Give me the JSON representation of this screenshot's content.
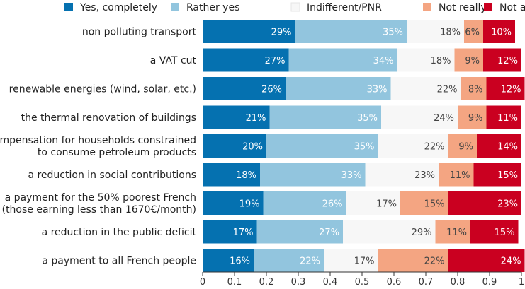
{
  "chart_data": {
    "type": "bar",
    "orientation": "horizontal",
    "stacked": true,
    "categories": [
      [
        "non polluting transport"
      ],
      [
        "a VAT cut"
      ],
      [
        "renewable energies (wind, solar, etc.)"
      ],
      [
        "the thermal renovation of buildings"
      ],
      [
        "compensation for households constrained",
        "to consume petroleum products"
      ],
      [
        "a reduction in social contributions"
      ],
      [
        "a payment for the 50% poorest French",
        "(those earning less than 1670€/month)"
      ],
      [
        "a reduction in the public deficit"
      ],
      [
        "a payment to all French people"
      ]
    ],
    "series": [
      {
        "name": "Yes, completely",
        "color": "#0571b0",
        "values": [
          0.29,
          0.27,
          0.26,
          0.21,
          0.2,
          0.18,
          0.19,
          0.17,
          0.16
        ],
        "labels": [
          "29%",
          "27%",
          "26%",
          "21%",
          "20%",
          "18%",
          "19%",
          "17%",
          "16%"
        ]
      },
      {
        "name": "Rather yes",
        "color": "#92c5de",
        "values": [
          0.35,
          0.34,
          0.33,
          0.35,
          0.35,
          0.33,
          0.26,
          0.27,
          0.22
        ],
        "labels": [
          "35%",
          "34%",
          "33%",
          "35%",
          "35%",
          "33%",
          "26%",
          "27%",
          "22%"
        ]
      },
      {
        "name": "Indifferent/PNR",
        "color": "#f7f7f7",
        "values": [
          0.18,
          0.18,
          0.22,
          0.24,
          0.22,
          0.23,
          0.17,
          0.29,
          0.17
        ],
        "labels": [
          "18%",
          "18%",
          "22%",
          "24%",
          "22%",
          "23%",
          "17%",
          "29%",
          "17%"
        ]
      },
      {
        "name": "Not really",
        "color": "#f4a582",
        "values": [
          0.06,
          0.09,
          0.08,
          0.09,
          0.09,
          0.11,
          0.15,
          0.11,
          0.22
        ],
        "labels": [
          "6%",
          "9%",
          "8%",
          "9%",
          "9%",
          "11%",
          "15%",
          "11%",
          "22%"
        ]
      },
      {
        "name": "Not at all",
        "color": "#ca0020",
        "values": [
          0.1,
          0.12,
          0.12,
          0.11,
          0.14,
          0.15,
          0.23,
          0.15,
          0.24
        ],
        "labels": [
          "10%",
          "12%",
          "12%",
          "11%",
          "14%",
          "15%",
          "23%",
          "15%",
          "24%"
        ]
      }
    ],
    "xlim": [
      0,
      1
    ],
    "xticks": [
      "0",
      "0.1",
      "0.2",
      "0.3",
      "0.4",
      "0.5",
      "0.6",
      "0.7",
      "0.8",
      "0.9",
      "1"
    ],
    "grid": false,
    "legend_position": "top"
  }
}
